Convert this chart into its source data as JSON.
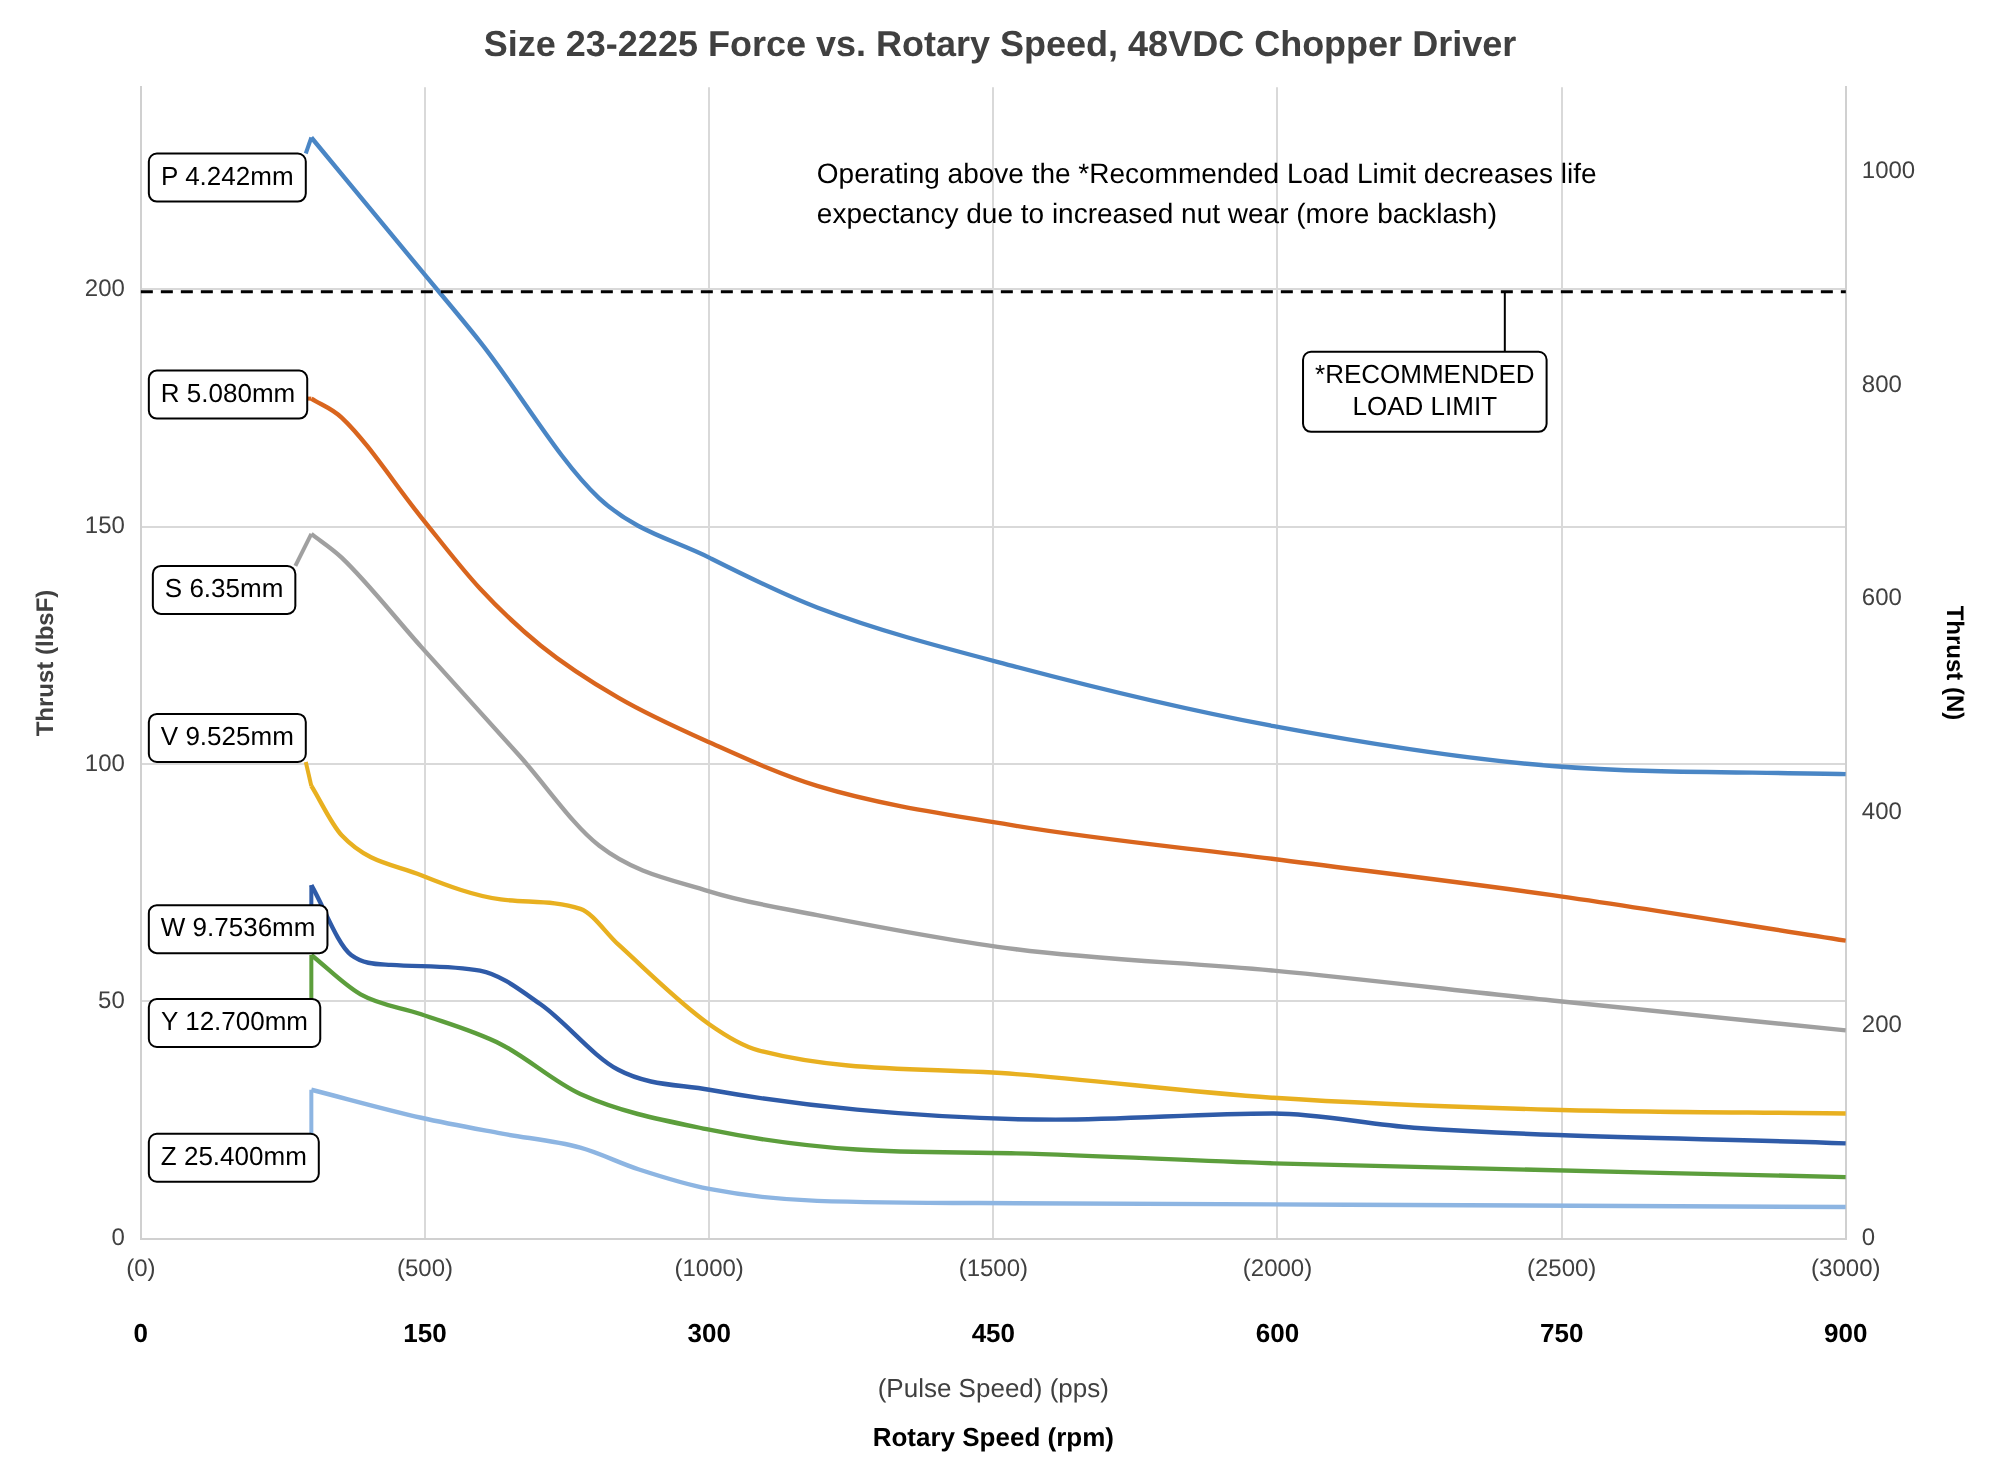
{
  "chart_data": {
    "type": "line",
    "title": "Size 23-2225 Force vs. Rotary Speed, 48VDC Chopper Driver",
    "xlabel": "Rotary Speed (rpm)",
    "x2label": "(Pulse Speed) (pps)",
    "ylabel": "Thrust (lbsF)",
    "y2label": "Thrust (N)",
    "xlim": [
      0,
      900
    ],
    "xticks": [
      0,
      150,
      300,
      450,
      600,
      750,
      900
    ],
    "x2lim": [
      0,
      3000
    ],
    "x2ticks": [
      {
        "value": 0,
        "label": "(0)"
      },
      {
        "value": 500,
        "label": "(500)"
      },
      {
        "value": 1000,
        "label": "(1000)"
      },
      {
        "value": 1500,
        "label": "(1500)"
      },
      {
        "value": 2000,
        "label": "(2000)"
      },
      {
        "value": 2500,
        "label": "(2500)"
      },
      {
        "value": 3000,
        "label": "(3000)"
      }
    ],
    "ylim": [
      0,
      242.6
    ],
    "yticks": [
      0,
      50,
      100,
      150,
      200
    ],
    "y2lim": [
      0,
      1079
    ],
    "y2ticks": [
      0,
      200,
      400,
      600,
      800,
      1000
    ],
    "grid": true,
    "legend": "left",
    "marker": "none",
    "line_style": "solid",
    "series": [
      {
        "name": "P 4.242mm",
        "color": "#4a86c5",
        "x": [
          90,
          148,
          179,
          242,
          300,
          357,
          462,
          598,
          745,
          900
        ],
        "values": [
          232,
          204,
          189,
          156,
          143.5,
          133,
          120.5,
          108,
          99.6,
          97.9
        ]
      },
      {
        "name": "R 5.080mm",
        "color": "#d9651e",
        "x": [
          90,
          106,
          148,
          179,
          211,
          252,
          300,
          357,
          462,
          598,
          745,
          900
        ],
        "values": [
          177,
          173,
          152,
          137,
          125,
          114,
          104.6,
          95.4,
          87,
          80,
          72.4,
          62.8
        ]
      },
      {
        "name": "S 6.35mm",
        "color": "#a0a0a0",
        "x": [
          90,
          106,
          148,
          200,
          242,
          300,
          357,
          462,
          598,
          745,
          900
        ],
        "values": [
          148.5,
          143.5,
          124.7,
          101.7,
          82.8,
          73.2,
          68.2,
          61,
          56.5,
          50.2,
          43.9
        ]
      },
      {
        "name": "V 9.525mm",
        "color": "#e8b020",
        "x": [
          90,
          106,
          148,
          190,
          232,
          252,
          300,
          326,
          462,
          598,
          745,
          900
        ],
        "values": [
          95.4,
          85,
          76.6,
          71.5,
          69.5,
          62,
          45.2,
          39.7,
          34.7,
          29.7,
          27.2,
          26.4
        ]
      },
      {
        "name": "W 9.7536mm",
        "color": "#2f5ba8",
        "x": [
          90,
          111,
          132,
          179,
          211,
          252,
          300,
          378,
          483,
          598,
          672,
          900
        ],
        "values": [
          74.5,
          59.8,
          57.7,
          56.5,
          49.4,
          35.6,
          31.4,
          27.2,
          25.1,
          26.4,
          23.4,
          20.1
        ]
      },
      {
        "name": "Y 12.700mm",
        "color": "#5c9e3c",
        "x": [
          90,
          116,
          148,
          190,
          232,
          300,
          378,
          462,
          598,
          900
        ],
        "values": [
          59.8,
          51.5,
          47.3,
          41,
          30.5,
          23,
          18.8,
          18,
          15.9,
          13
        ]
      },
      {
        "name": "Z 25.400mm",
        "color": "#8db5e2",
        "x": [
          90,
          148,
          190,
          232,
          263,
          300,
          357,
          462,
          900
        ],
        "values": [
          31.4,
          25.5,
          22.2,
          19.2,
          14.6,
          10.5,
          8,
          7.5,
          6.7
        ]
      }
    ],
    "ref_lines": [
      {
        "axis": "y",
        "value": 199.5,
        "label": "*RECOMMENDED LOAD LIMIT",
        "color": "#000000",
        "line_style": "dashed"
      }
    ],
    "annotations": [
      "Operating above the *Recommended Load Limit decreases life expectancy due to increased nut wear (more backlash)"
    ]
  }
}
